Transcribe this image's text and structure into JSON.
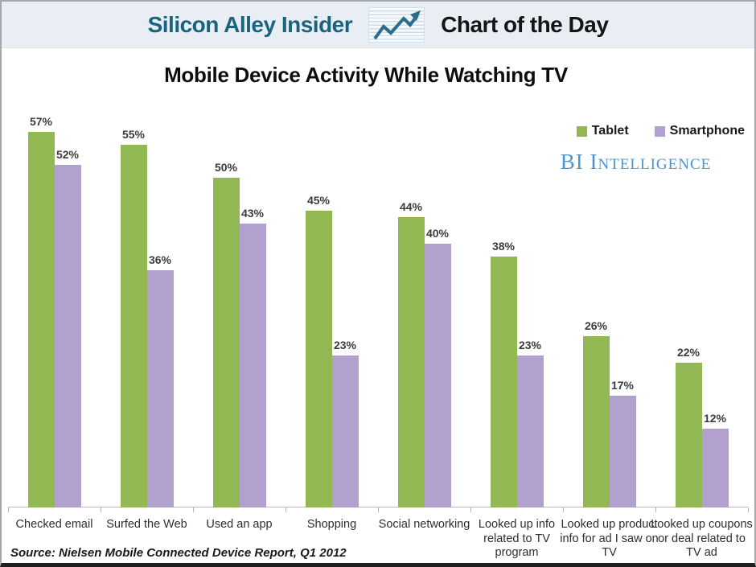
{
  "header": {
    "brand": "Silicon Alley Insider",
    "brand_color": "#19637e",
    "title": "Chart of the Day",
    "icon": "line-chart-arrow-icon",
    "icon_color": "#2d6b8a",
    "background": "#e9eef4"
  },
  "chart_data": {
    "type": "bar",
    "title": "Mobile Device Activity While Watching TV",
    "categories": [
      "Checked email",
      "Surfed the Web",
      "Used an app",
      "Shopping",
      "Social networking",
      "Looked up info related to TV program",
      "Looked up product info for ad I saw on TV",
      "Looked up coupons or deal related to TV ad"
    ],
    "series": [
      {
        "name": "Tablet",
        "color": "#92b854",
        "values": [
          57,
          55,
          50,
          45,
          44,
          38,
          26,
          22
        ]
      },
      {
        "name": "Smartphone",
        "color": "#b2a0ce",
        "values": [
          52,
          36,
          43,
          23,
          40,
          23,
          17,
          12
        ]
      }
    ],
    "value_suffix": "%",
    "data_labels": true,
    "ylim": [
      0,
      58
    ],
    "grid": false,
    "legend_position": "top-right",
    "xlabel": "",
    "ylabel": ""
  },
  "branding": {
    "watermark": "BI Intelligence",
    "color": "#4d94d4"
  },
  "footer": {
    "source": "Source: Nielsen Mobile Connected Device Report, Q1 2012"
  }
}
